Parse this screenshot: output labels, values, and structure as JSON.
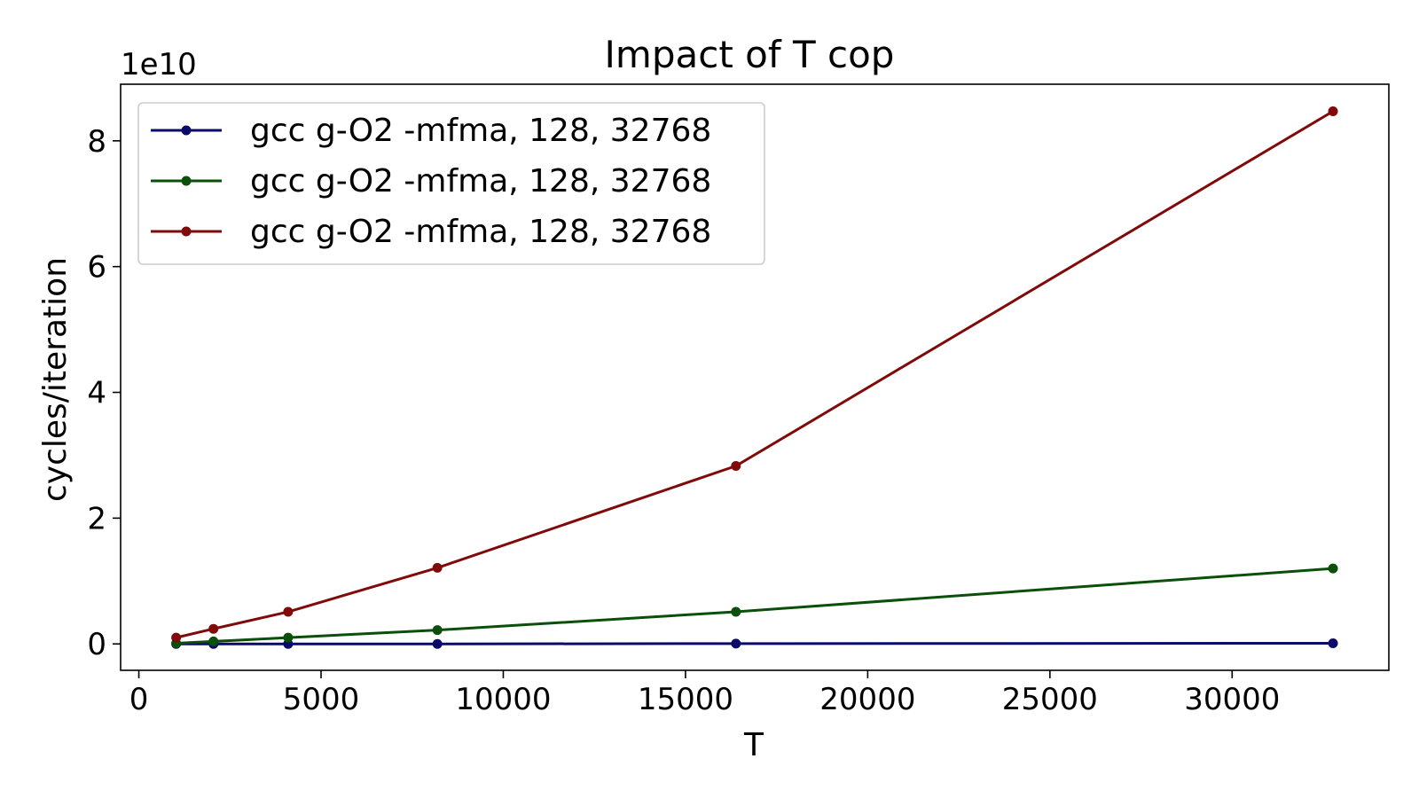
{
  "chart_data": {
    "type": "line",
    "title": "Impact of T cop",
    "xlabel": "T",
    "ylabel": "cycles/iteration",
    "y_multiplier_label": "1e10",
    "y_scale": 10000000000.0,
    "xlim": [
      -500,
      34300
    ],
    "ylim": [
      -4200000000.0,
      89000000000.0
    ],
    "xticks": [
      0,
      5000,
      10000,
      15000,
      20000,
      25000,
      30000
    ],
    "xtick_labels": [
      "0",
      "5000",
      "10000",
      "15000",
      "20000",
      "25000",
      "30000"
    ],
    "yticks": [
      0,
      20000000000.0,
      40000000000.0,
      60000000000.0,
      80000000000.0
    ],
    "ytick_labels": [
      "0",
      "2",
      "4",
      "6",
      "8"
    ],
    "grid": false,
    "legend_position": "top-left",
    "x": [
      1024,
      2048,
      4096,
      8192,
      16384,
      32768
    ],
    "series": [
      {
        "name": "gcc g-O2 -mfma, 128, 32768",
        "color": "#0a0a6b",
        "values": [
          0.0,
          0.0,
          0.0,
          0.0,
          50000000.0,
          100000000.0
        ]
      },
      {
        "name": "gcc g-O2 -mfma, 128, 32768",
        "color": "#0a4f0a",
        "values": [
          100000000.0,
          400000000.0,
          1000000000.0,
          2200000000.0,
          5100000000.0,
          12000000000.0
        ]
      },
      {
        "name": "gcc g-O2 -mfma, 128, 32768",
        "color": "#800a0a",
        "values": [
          1000000000.0,
          2400000000.0,
          5100000000.0,
          12100000000.0,
          28300000000.0,
          84700000000.0
        ]
      }
    ]
  }
}
